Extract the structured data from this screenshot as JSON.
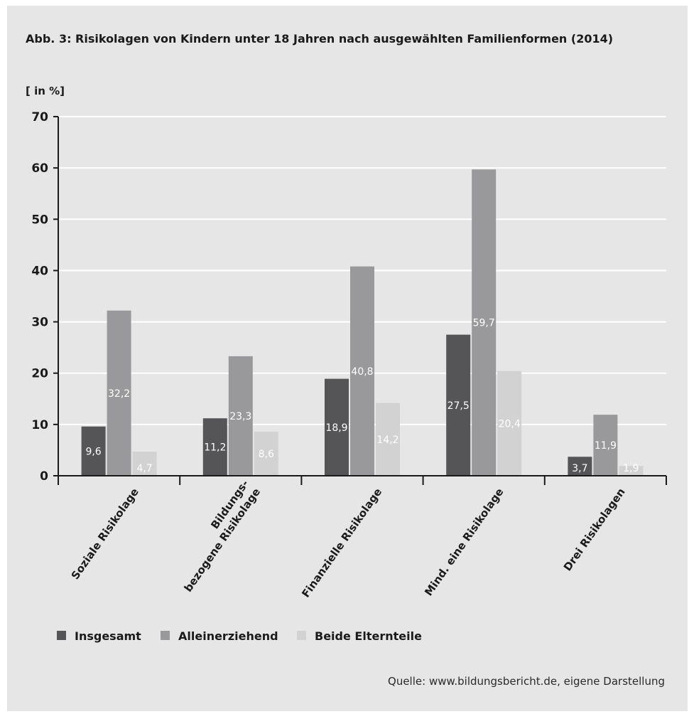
{
  "chart_data": {
    "type": "bar",
    "title": "Abb. 3: Risikolagen von Kindern unter 18 Jahren nach ausgewählten Familienformen (2014)",
    "ylabel": "[ in %]",
    "xlabel": "",
    "ylim": [
      0,
      70
    ],
    "yticks": [
      "0",
      "10",
      "20",
      "30",
      "40",
      "50",
      "60",
      "70"
    ],
    "grid": true,
    "legend_position": "bottom-left",
    "categories": [
      [
        "Soziale Risikolage"
      ],
      [
        "Bildungs-",
        "bezogene Risikolage"
      ],
      [
        "Finanzielle Risikolage"
      ],
      [
        "Mind. eine Risikolage"
      ],
      [
        "Drei Risikolagen"
      ]
    ],
    "series": [
      {
        "name": "Insgesamt",
        "color": "#555557",
        "values": [
          9.6,
          11.2,
          18.9,
          27.5,
          3.7
        ],
        "labels": [
          "9,6",
          "11,2",
          "18,9",
          "27,5",
          "3,7"
        ]
      },
      {
        "name": "Alleinerziehend",
        "color": "#99999b",
        "values": [
          32.2,
          23.3,
          40.8,
          59.7,
          11.9
        ],
        "labels": [
          "32,2",
          "23,3",
          "40,8",
          "59,7",
          "11,9"
        ]
      },
      {
        "name": "Beide Elternteile",
        "color": "#d2d2d3",
        "values": [
          4.7,
          8.6,
          14.2,
          20.4,
          1.9
        ],
        "labels": [
          "4,7",
          "8,6",
          "14,2",
          "20,4",
          "1,9"
        ]
      }
    ]
  },
  "source": "Quelle: www.bildungsbericht.de, eigene Darstellung"
}
